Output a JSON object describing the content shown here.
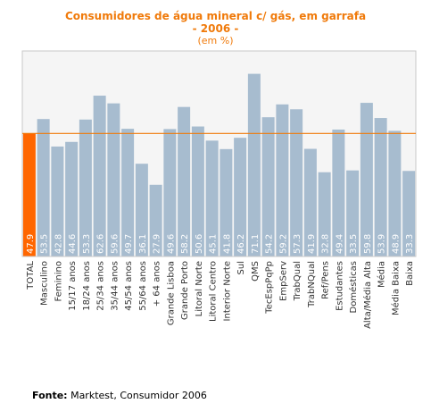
{
  "chart_data": {
    "type": "bar",
    "title": "Consumidores de  água mineral c/ gás, em garrafa",
    "subtitle": "- 2006 -",
    "unit_label": "(em %)",
    "categories": [
      "TOTAL",
      "Masculino",
      "Feminino",
      "15/17 anos",
      "18/24 anos",
      "25/34 anos",
      "35/44 anos",
      "45/54 anos",
      "55/64 anos",
      "+ 64 anos",
      "Grande Lisboa",
      "Grande Porto",
      "Litoral Norte",
      "Litoral Centro",
      "Interior Norte",
      "Sul",
      "QMS",
      "TecEspPqPp",
      "EmpServ",
      "TrabQual",
      "TrabNQual",
      "Ref/Pens",
      "Estudantes",
      "Domésticas",
      "Alta/Média Alta",
      "Média",
      "Média Baixa",
      "Baixa"
    ],
    "values": [
      47.9,
      53.5,
      42.8,
      44.6,
      53.3,
      62.6,
      59.6,
      49.7,
      36.1,
      27.9,
      49.6,
      58.2,
      50.6,
      45.1,
      41.8,
      46.2,
      71.1,
      54.2,
      59.2,
      57.3,
      41.9,
      32.8,
      49.4,
      33.5,
      59.8,
      53.9,
      48.9,
      33.3
    ],
    "labels": [
      "47.9",
      "53.5",
      "42.8",
      "44.6",
      "53.3",
      "62.6",
      "59.6",
      "49.7",
      "36.1",
      "27.9",
      "49.6",
      "58.2",
      "50.6",
      "45.1",
      "41.8",
      "46.2",
      "71.1",
      "54.2",
      "59.2",
      "57.3",
      "41.9",
      "32.8",
      "49.4",
      "33.5",
      "59.8",
      "53.9",
      "48.9",
      "33.3"
    ],
    "ylim": [
      0,
      80
    ],
    "reference_line": 47.9,
    "colors": {
      "total": "#ff6600",
      "bar": "#a7bccf",
      "line": "#f07a0a",
      "plot_bg": "#f5f5f5",
      "grid_border": "#c8c8c8"
    },
    "grid": false
  },
  "source": {
    "label": "Fonte:",
    "text": " Marktest, Consumidor 2006"
  }
}
